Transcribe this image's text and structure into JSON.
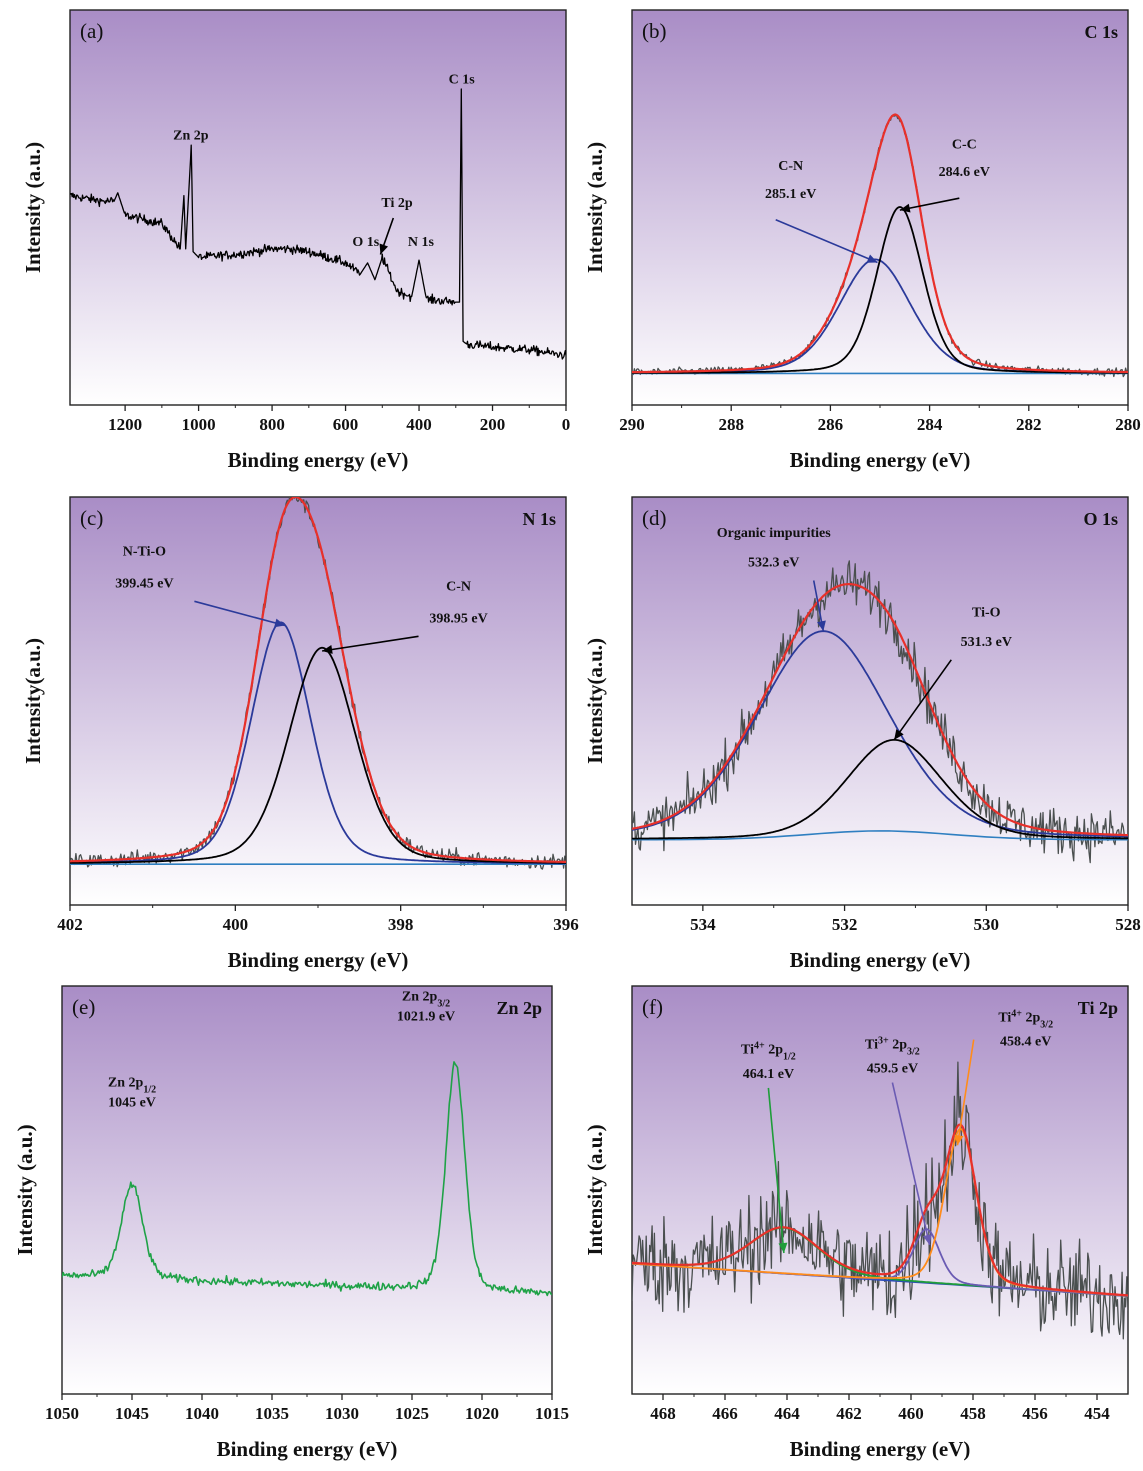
{
  "colors": {
    "bg_top": "#a98dc6",
    "bg_bottom": "#ffffff",
    "raw": "#4a4f4f",
    "fit": "#e8302a",
    "component_blue": "#2b3a9a",
    "component_black": "#000000",
    "baseline": "#2f7fc1",
    "zn_green": "#1fa247",
    "ti_green": "#1f9d3a",
    "ti_purple": "#6a5bb3",
    "ti_orange": "#ff8c1a",
    "ti_baseline": "#2a4ab8"
  },
  "chart_data": [
    {
      "id": "a",
      "type": "line",
      "panel_label": "(a)",
      "corner_title": "",
      "xlabel": "Binding energy (eV)",
      "ylabel": "Intensity (a.u.)",
      "xlim": [
        1350,
        0
      ],
      "xticks": [
        1200,
        1000,
        800,
        600,
        400,
        200,
        0
      ],
      "series": [
        {
          "role": "raw",
          "color": "#000000",
          "x": [
            1350,
            1260,
            1230,
            1220,
            1200,
            1100,
            1050,
            1040,
            1035,
            1020,
            1015,
            1000,
            900,
            800,
            750,
            700,
            650,
            600,
            560,
            540,
            520,
            500,
            460,
            420,
            400,
            380,
            300,
            290,
            285,
            280,
            270,
            200,
            100,
            0
          ],
          "y": [
            0.62,
            0.6,
            0.6,
            0.63,
            0.55,
            0.52,
            0.43,
            0.62,
            0.43,
            0.8,
            0.42,
            0.4,
            0.41,
            0.43,
            0.43,
            0.42,
            0.4,
            0.38,
            0.34,
            0.38,
            0.32,
            0.4,
            0.28,
            0.26,
            0.39,
            0.25,
            0.24,
            0.24,
            1.0,
            0.1,
            0.09,
            0.08,
            0.07,
            0.05
          ]
        }
      ],
      "annotations": [
        {
          "text": "Zn 2p",
          "x": 1021,
          "y": 0.82
        },
        {
          "text": "C 1s",
          "x": 284,
          "y": 1.02
        },
        {
          "text": "Ti 2p",
          "x": 460,
          "y": 0.58
        },
        {
          "text": "O 1s",
          "x": 545,
          "y": 0.44
        },
        {
          "text": "N 1s",
          "x": 395,
          "y": 0.44
        }
      ]
    },
    {
      "id": "b",
      "type": "line",
      "panel_label": "(b)",
      "corner_title": "C 1s",
      "xlabel": "Binding energy (eV)",
      "ylabel": "Intensity (a.u.)",
      "xlim": [
        290,
        280
      ],
      "xticks": [
        290,
        288,
        286,
        284,
        282,
        280
      ],
      "peaks": [
        {
          "name": "C-N",
          "center": 285.1,
          "height": 0.37,
          "fwhm": 1.7,
          "color": "#2b3a9a"
        },
        {
          "name": "C-C",
          "center": 284.6,
          "height": 0.54,
          "fwhm": 1.1,
          "color": "#000000"
        }
      ],
      "baseline": [
        0.0,
        0.0
      ],
      "annotations": [
        {
          "text": "C-N",
          "x": 286.8,
          "y": 0.66
        },
        {
          "text": "285.1 eV",
          "x": 286.8,
          "y": 0.57
        },
        {
          "text": "C-C",
          "x": 283.3,
          "y": 0.73
        },
        {
          "text": "284.6 eV",
          "x": 283.3,
          "y": 0.64
        }
      ]
    },
    {
      "id": "c",
      "type": "line",
      "panel_label": "(c)",
      "corner_title": "N 1s",
      "xlabel": "Binding energy (eV)",
      "ylabel": "Intensity(a.u.)",
      "xlim": [
        402,
        396
      ],
      "xticks": [
        402,
        400,
        398,
        396
      ],
      "peaks": [
        {
          "name": "N-Ti-O",
          "center": 399.45,
          "height": 0.76,
          "fwhm": 0.85,
          "color": "#2b3a9a"
        },
        {
          "name": "C-N",
          "center": 398.95,
          "height": 0.68,
          "fwhm": 0.95,
          "color": "#000000"
        }
      ],
      "baseline": [
        0.0,
        0.0
      ],
      "annotations": [
        {
          "text": "N-Ti-O",
          "x": 401.1,
          "y": 0.97
        },
        {
          "text": "399.45 eV",
          "x": 401.1,
          "y": 0.87
        },
        {
          "text": "C-N",
          "x": 397.3,
          "y": 0.86
        },
        {
          "text": "398.95 eV",
          "x": 397.3,
          "y": 0.76
        }
      ]
    },
    {
      "id": "d",
      "type": "line",
      "panel_label": "(d)",
      "corner_title": "O 1s",
      "xlabel": "Binding energy (eV)",
      "ylabel": "Intensity(a.u.)",
      "xlim": [
        535,
        528
      ],
      "xticks": [
        534,
        532,
        530,
        528
      ],
      "peaks": [
        {
          "name": "Organic impurities",
          "center": 532.3,
          "height": 0.71,
          "fwhm": 2.2,
          "color": "#2b3a9a"
        },
        {
          "name": "Ti-O",
          "center": 531.3,
          "height": 0.34,
          "fwhm": 1.6,
          "color": "#000000"
        }
      ],
      "baseline": [
        0.0,
        0.0
      ],
      "annotations": [
        {
          "text": "Organic impurities",
          "x": 533.0,
          "y": 1.03
        },
        {
          "text": "532.3 eV",
          "x": 533.0,
          "y": 0.93
        },
        {
          "text": "Ti-O",
          "x": 530.0,
          "y": 0.76
        },
        {
          "text": "531.3 eV",
          "x": 530.0,
          "y": 0.66
        }
      ]
    },
    {
      "id": "e",
      "type": "line",
      "panel_label": "(e)",
      "corner_title": "Zn 2p",
      "xlabel": "Binding energy (eV)",
      "ylabel": "Intensity (a.u.)",
      "xlim": [
        1050,
        1015
      ],
      "xticks": [
        1050,
        1045,
        1040,
        1035,
        1030,
        1025,
        1020,
        1015
      ],
      "series": [
        {
          "role": "raw",
          "color": "#1fa247"
        }
      ],
      "peaks": [
        {
          "name": "Zn 2p1/2",
          "center": 1045,
          "height": 0.37,
          "fwhm": 1.8
        },
        {
          "name": "Zn 2p3/2",
          "center": 1021.9,
          "height": 0.9,
          "fwhm": 1.6
        }
      ],
      "annotations": [
        {
          "text": "Zn 2p",
          "sub": "1/2",
          "x": 1045,
          "y": 0.7
        },
        {
          "text": "1045 eV",
          "x": 1045,
          "y": 0.62
        },
        {
          "text": "Zn 2p",
          "sub": "3/2",
          "x": 1024,
          "y": 1.04
        },
        {
          "text": "1021.9 eV",
          "x": 1024,
          "y": 0.96
        }
      ]
    },
    {
      "id": "f",
      "type": "line",
      "panel_label": "(f)",
      "corner_title": "Ti 2p",
      "xlabel": "Binding energy (eV)",
      "ylabel": "Intensity (a.u.)",
      "xlim": [
        469,
        453
      ],
      "xticks": [
        468,
        466,
        464,
        462,
        460,
        458,
        456,
        454
      ],
      "peaks": [
        {
          "name": "Ti4+ 2p1/2",
          "center": 464.1,
          "height": 0.17,
          "fwhm": 2.6,
          "color": "#1f9d3a"
        },
        {
          "name": "Ti3+ 2p3/2",
          "center": 459.5,
          "height": 0.2,
          "fwhm": 1.0,
          "color": "#6a5bb3"
        },
        {
          "name": "Ti4+ 2p3/2",
          "center": 458.4,
          "height": 0.58,
          "fwhm": 1.2,
          "color": "#ff8c1a"
        }
      ],
      "baseline": [
        0.12,
        0.0
      ],
      "annotations": [
        {
          "text": "Ti",
          "sup": "4+",
          "tail": " 2p",
          "sub": "1/2",
          "x": 464.6,
          "y": 0.9
        },
        {
          "text": "464.1 eV",
          "x": 464.6,
          "y": 0.81
        },
        {
          "text": "Ti",
          "sup": "3+",
          "tail": " 2p",
          "sub": "3/2",
          "x": 460.6,
          "y": 0.92
        },
        {
          "text": "459.5 eV",
          "x": 460.6,
          "y": 0.83
        },
        {
          "text": "Ti",
          "sup": "4+",
          "tail": " 2p",
          "sub": "3/2",
          "x": 456.3,
          "y": 1.02
        },
        {
          "text": "458.4 eV",
          "x": 456.3,
          "y": 0.93
        }
      ]
    }
  ]
}
